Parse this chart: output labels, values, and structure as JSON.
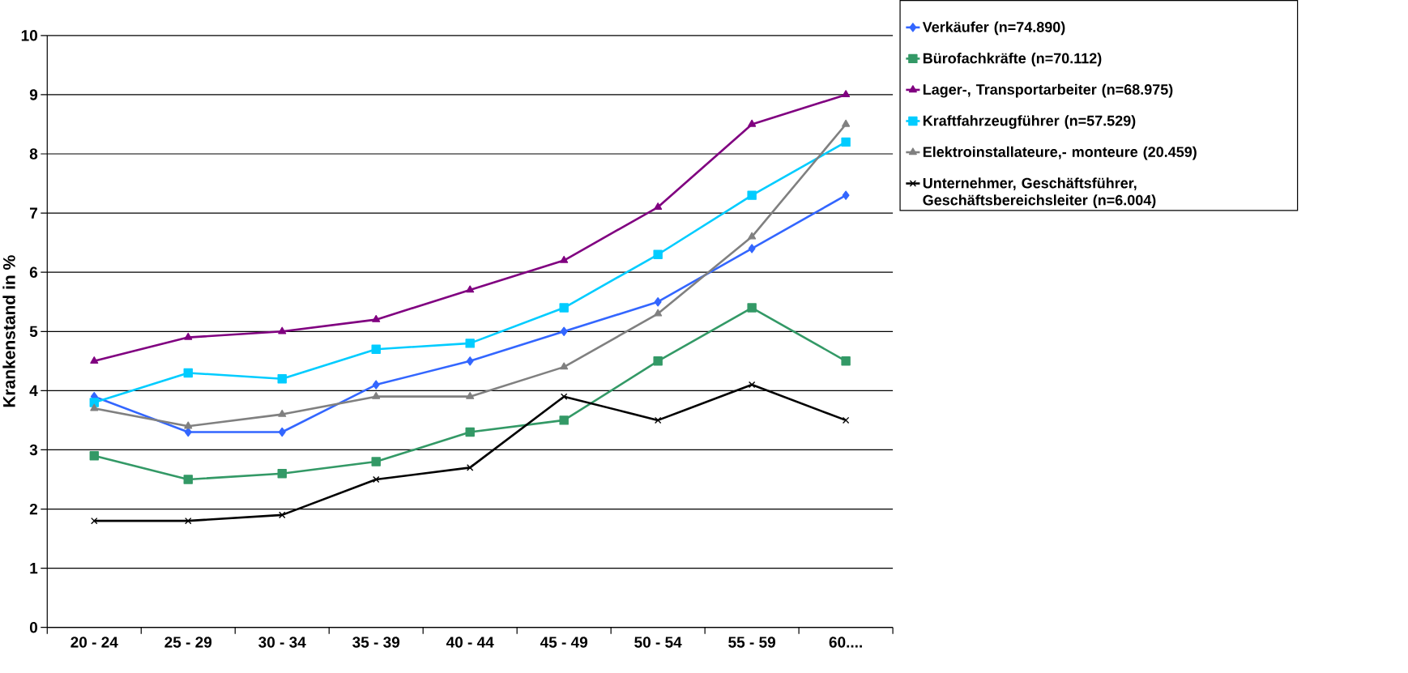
{
  "chart_data": {
    "type": "line",
    "ylabel": "Krankenstand in %",
    "categories": [
      "20 - 24",
      "25 - 29",
      "30 - 34",
      "35 - 39",
      "40 - 44",
      "45 - 49",
      "50 - 54",
      "55 - 59",
      "60...."
    ],
    "ylim": [
      0,
      10
    ],
    "yticks": [
      0,
      1,
      2,
      3,
      4,
      5,
      6,
      7,
      8,
      9,
      10
    ],
    "grid": "y",
    "legend": "right",
    "series": [
      {
        "name": "Verkäufer (n=74.890)",
        "color": "#3366ff",
        "marker": "diamond",
        "values": [
          3.9,
          3.3,
          3.3,
          4.1,
          4.5,
          5.0,
          5.5,
          6.4,
          7.3
        ]
      },
      {
        "name": "Bürofachkräfte (n=70.112)",
        "color": "#339966",
        "marker": "square",
        "values": [
          2.9,
          2.5,
          2.6,
          2.8,
          3.3,
          3.5,
          4.5,
          5.4,
          4.5
        ]
      },
      {
        "name": "Lager-, Transportarbeiter (n=68.975)",
        "color": "#800080",
        "marker": "triangle",
        "values": [
          4.5,
          4.9,
          5.0,
          5.2,
          5.7,
          6.2,
          7.1,
          8.5,
          9.0
        ]
      },
      {
        "name": "Kraftfahrzeugführer (n=57.529)",
        "color": "#00ccff",
        "marker": "square",
        "values": [
          3.8,
          4.3,
          4.2,
          4.7,
          4.8,
          5.4,
          6.3,
          7.3,
          8.2
        ]
      },
      {
        "name": "Elektroinstallateure,- monteure (20.459)",
        "color": "#808080",
        "marker": "triangle",
        "values": [
          3.7,
          3.4,
          3.6,
          3.9,
          3.9,
          4.4,
          5.3,
          6.6,
          8.5
        ]
      },
      {
        "name": "Unternehmer, Geschäftsführer, Geschäftsbereichsleiter (n=6.004)",
        "color": "#000000",
        "marker": "cross",
        "values": [
          1.8,
          1.8,
          1.9,
          2.5,
          2.7,
          3.9,
          3.5,
          4.1,
          3.5
        ]
      }
    ]
  }
}
